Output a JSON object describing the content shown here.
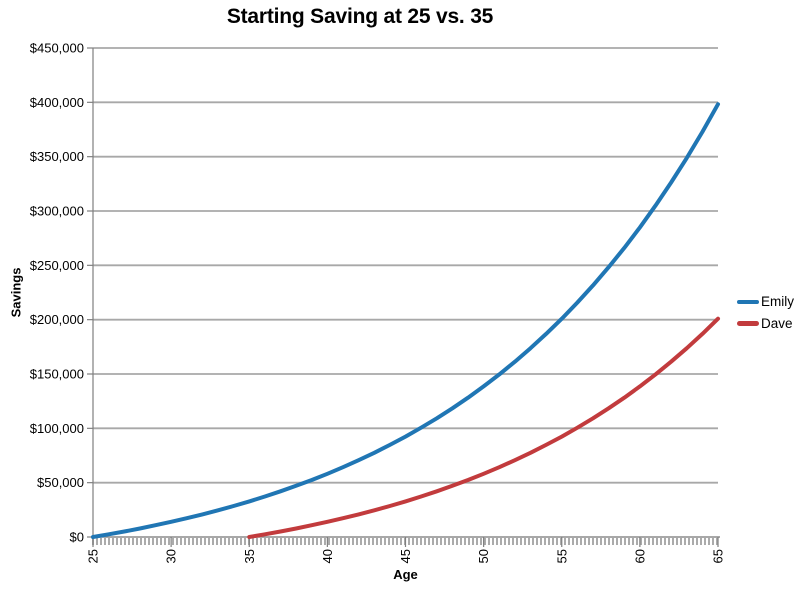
{
  "chart_data": {
    "type": "line",
    "title": "Starting Saving at 25 vs. 35",
    "xlabel": "Age",
    "ylabel": "Savings",
    "xlim": [
      25,
      65
    ],
    "ylim": [
      0,
      450000
    ],
    "x_ticks": [
      25,
      30,
      35,
      40,
      45,
      50,
      55,
      60,
      65
    ],
    "y_ticks": [
      0,
      50000,
      100000,
      150000,
      200000,
      250000,
      300000,
      350000,
      400000,
      450000
    ],
    "y_tick_labels": [
      "$0",
      "$50,000",
      "$100,000",
      "$150,000",
      "$200,000",
      "$250,000",
      "$300,000",
      "$350,000",
      "$400,000",
      "$450,000"
    ],
    "grid": "horizontal-only",
    "legend_position": "right-center",
    "colors": {
      "gridline": "#A8A8A8",
      "axis": "#7F7F7F",
      "tick_band": "#ABABAB",
      "text": "#000000",
      "background": "#FFFFFF"
    },
    "series": [
      {
        "name": "Emily",
        "color": "#2076B4",
        "x": [
          25,
          26,
          27,
          28,
          29,
          30,
          31,
          32,
          33,
          34,
          35,
          36,
          37,
          38,
          39,
          40,
          41,
          42,
          43,
          44,
          45,
          46,
          47,
          48,
          49,
          50,
          51,
          52,
          53,
          54,
          55,
          56,
          57,
          58,
          59,
          60,
          61,
          62,
          63,
          64,
          65
        ],
        "values": [
          0,
          2467,
          5086,
          7867,
          10820,
          13954,
          17282,
          20815,
          24566,
          28548,
          32776,
          37265,
          42030,
          47089,
          52461,
          58164,
          64218,
          70646,
          77471,
          84716,
          92408,
          100575,
          109245,
          118450,
          128223,
          138599,
          149614,
          161309,
          173726,
          186908,
          200903,
          215761,
          231536,
          248284,
          266065,
          284942,
          304984,
          326262,
          348852,
          372835,
          398298
        ]
      },
      {
        "name": "Dave",
        "color": "#C23B3D",
        "x": [
          35,
          36,
          37,
          38,
          39,
          40,
          41,
          42,
          43,
          44,
          45,
          46,
          47,
          48,
          49,
          50,
          51,
          52,
          53,
          54,
          55,
          56,
          57,
          58,
          59,
          60,
          61,
          62,
          63,
          64,
          65
        ],
        "values": [
          0,
          2467,
          5086,
          7867,
          10820,
          13954,
          17282,
          20815,
          24566,
          28548,
          32776,
          37265,
          42030,
          47089,
          52461,
          58164,
          64218,
          70646,
          77471,
          84716,
          92408,
          100575,
          109245,
          118450,
          128223,
          138599,
          149614,
          161309,
          173726,
          186908,
          200903
        ]
      }
    ]
  }
}
